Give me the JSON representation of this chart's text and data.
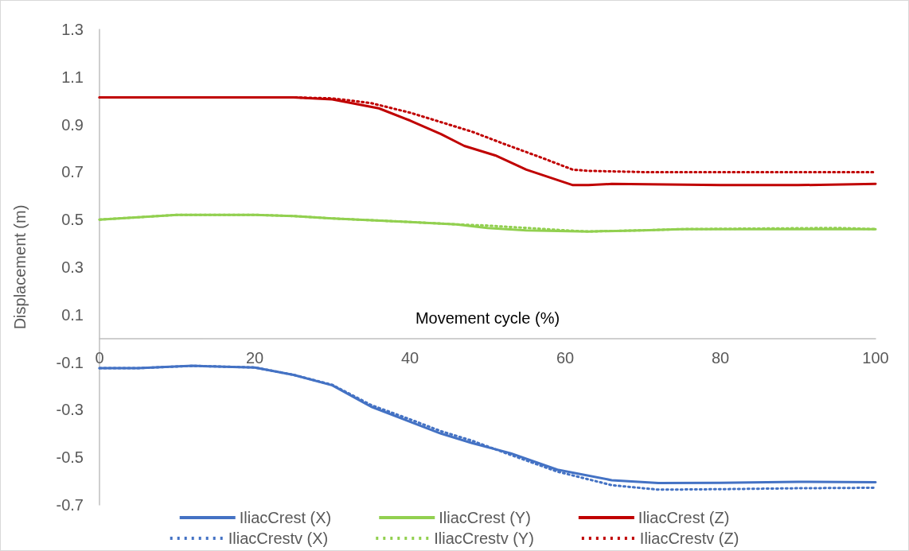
{
  "chart_data": {
    "type": "line",
    "xlabel": "Movement cycle (%)",
    "ylabel": "Displacement (m)",
    "xlim": [
      0,
      100
    ],
    "xticks": [
      0,
      20,
      40,
      60,
      80,
      100
    ],
    "ylim": [
      -0.7,
      1.3
    ],
    "yticks": [
      -0.7,
      -0.5,
      -0.3,
      -0.1,
      0.1,
      0.3,
      0.5,
      0.7,
      0.9,
      1.1,
      1.3
    ],
    "grid": false,
    "legend": "bottom",
    "marker": "none",
    "series": [
      {
        "name": "IliacCrest (X)",
        "color": "#4472c4",
        "line_style": "solid",
        "x": [
          0,
          5,
          12,
          20,
          25,
          30,
          35,
          40,
          44,
          48,
          53,
          59,
          66,
          72,
          80,
          90,
          100
        ],
        "values": [
          -0.125,
          -0.125,
          -0.115,
          -0.122,
          -0.153,
          -0.197,
          -0.287,
          -0.35,
          -0.4,
          -0.44,
          -0.483,
          -0.552,
          -0.596,
          -0.608,
          -0.607,
          -0.603,
          -0.605
        ]
      },
      {
        "name": "IliacCrest (Y)",
        "color": "#92d050",
        "line_style": "solid",
        "x": [
          0,
          5,
          10,
          20,
          25,
          30,
          40,
          46,
          50,
          55,
          63,
          70,
          75,
          100
        ],
        "values": [
          0.5,
          0.51,
          0.52,
          0.52,
          0.515,
          0.505,
          0.49,
          0.48,
          0.465,
          0.455,
          0.45,
          0.455,
          0.46,
          0.46
        ]
      },
      {
        "name": "IliacCrest (Z)",
        "color": "#c00000",
        "line_style": "solid",
        "x": [
          0,
          25,
          30,
          36,
          40,
          44,
          47,
          51,
          55,
          61,
          63,
          66,
          80,
          90,
          100
        ],
        "values": [
          1.014,
          1.014,
          1.006,
          0.968,
          0.917,
          0.86,
          0.81,
          0.77,
          0.71,
          0.645,
          0.645,
          0.65,
          0.645,
          0.645,
          0.65
        ]
      },
      {
        "name": "IliacCrestv (X)",
        "color": "#4472c4",
        "line_style": "dotted",
        "x": [
          0,
          5,
          12,
          20,
          25,
          30,
          35,
          40,
          44,
          48,
          53,
          59,
          66,
          72,
          80,
          90,
          100
        ],
        "values": [
          -0.125,
          -0.125,
          -0.115,
          -0.122,
          -0.153,
          -0.195,
          -0.28,
          -0.34,
          -0.39,
          -0.43,
          -0.49,
          -0.56,
          -0.617,
          -0.636,
          -0.634,
          -0.63,
          -0.628
        ]
      },
      {
        "name": "IliacCrestv (Y)",
        "color": "#92d050",
        "line_style": "dotted",
        "x": [
          0,
          5,
          10,
          20,
          25,
          30,
          40,
          46,
          50,
          55,
          60,
          63,
          70,
          75,
          95,
          100
        ],
        "values": [
          0.5,
          0.51,
          0.52,
          0.52,
          0.515,
          0.505,
          0.49,
          0.48,
          0.475,
          0.465,
          0.455,
          0.45,
          0.455,
          0.46,
          0.465,
          0.46
        ]
      },
      {
        "name": "IliacCrestv (Z)",
        "color": "#c00000",
        "line_style": "dotted",
        "x": [
          0,
          25,
          30,
          35,
          40,
          44,
          48,
          52,
          57,
          61,
          63,
          70,
          100
        ],
        "values": [
          1.014,
          1.014,
          1.01,
          0.99,
          0.95,
          0.91,
          0.87,
          0.82,
          0.76,
          0.71,
          0.705,
          0.7,
          0.7
        ]
      }
    ]
  }
}
